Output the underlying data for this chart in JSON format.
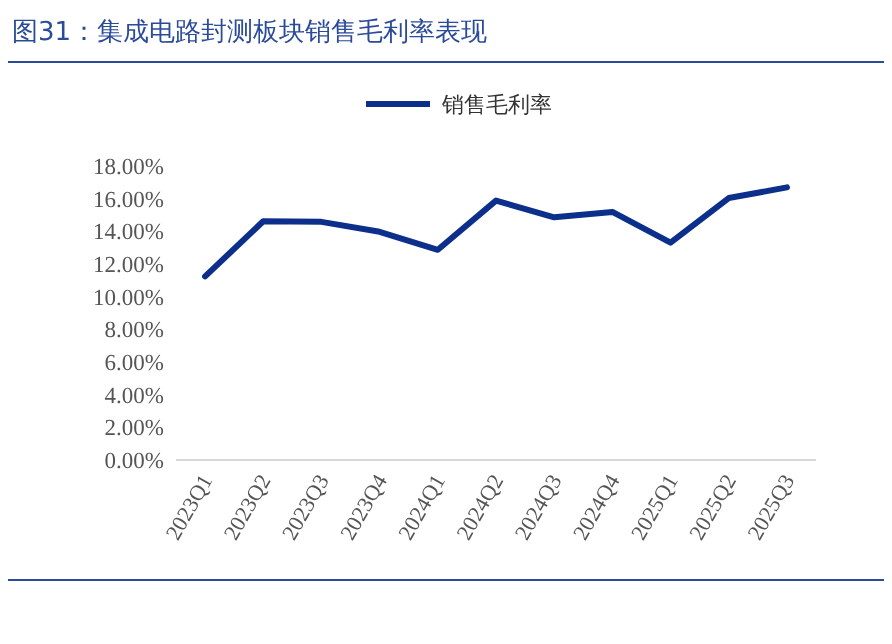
{
  "chart_data": {
    "type": "line",
    "title": "图31：集成电路封测板块销售毛利率表现",
    "categories": [
      "2023Q1",
      "2023Q2",
      "2023Q3",
      "2023Q4",
      "2024Q1",
      "2024Q2",
      "2024Q3",
      "2024Q4",
      "2025Q1",
      "2025Q2",
      "2025Q3"
    ],
    "series": [
      {
        "name": "销售毛利率",
        "color": "#0d2f8c",
        "values": [
          11.24,
          14.62,
          14.58,
          13.97,
          12.87,
          15.88,
          14.86,
          15.19,
          13.31,
          16.04,
          16.69
        ]
      }
    ],
    "ylim": [
      0,
      18
    ],
    "yticks": [
      {
        "value": 0,
        "label": "0.00%"
      },
      {
        "value": 2,
        "label": "2.00%"
      },
      {
        "value": 4,
        "label": "4.00%"
      },
      {
        "value": 6,
        "label": "6.00%"
      },
      {
        "value": 8,
        "label": "8.00%"
      },
      {
        "value": 10,
        "label": "10.00%"
      },
      {
        "value": 12,
        "label": "12.00%"
      },
      {
        "value": 14,
        "label": "14.00%"
      },
      {
        "value": 16,
        "label": "16.00%"
      },
      {
        "value": 18,
        "label": "18.00%"
      }
    ],
    "grid": false,
    "legend": "top",
    "marker": "none",
    "line_style": "solid"
  }
}
